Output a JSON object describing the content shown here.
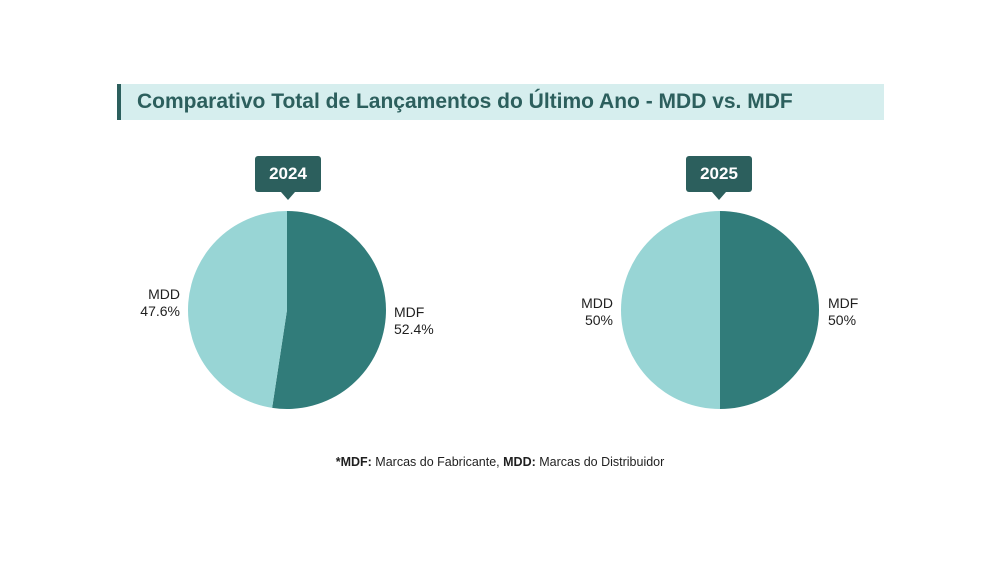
{
  "title": "Comparativo Total de Lançamentos do Último Ano - MDD vs. MDF",
  "colors": {
    "accent_dark": "#2c5f5d",
    "mdf": "#317c7a",
    "mdd": "#98d5d5",
    "title_bg": "#d6eeee"
  },
  "chart_data": [
    {
      "type": "pie",
      "title": "2024",
      "slices": [
        {
          "name": "MDF",
          "value": 52.4,
          "label": "52.4%",
          "color": "#317c7a"
        },
        {
          "name": "MDD",
          "value": 47.6,
          "label": "47.6%",
          "color": "#98d5d5"
        }
      ]
    },
    {
      "type": "pie",
      "title": "2025",
      "slices": [
        {
          "name": "MDF",
          "value": 50,
          "label": "50%",
          "color": "#317c7a"
        },
        {
          "name": "MDD",
          "value": 50,
          "label": "50%",
          "color": "#98d5d5"
        }
      ]
    }
  ],
  "footnote": {
    "mdf_abbr": "*MDF:",
    "mdf_text": " Marcas do Fabricante, ",
    "mdd_abbr": "MDD:",
    "mdd_text": " Marcas do Distribuidor"
  }
}
